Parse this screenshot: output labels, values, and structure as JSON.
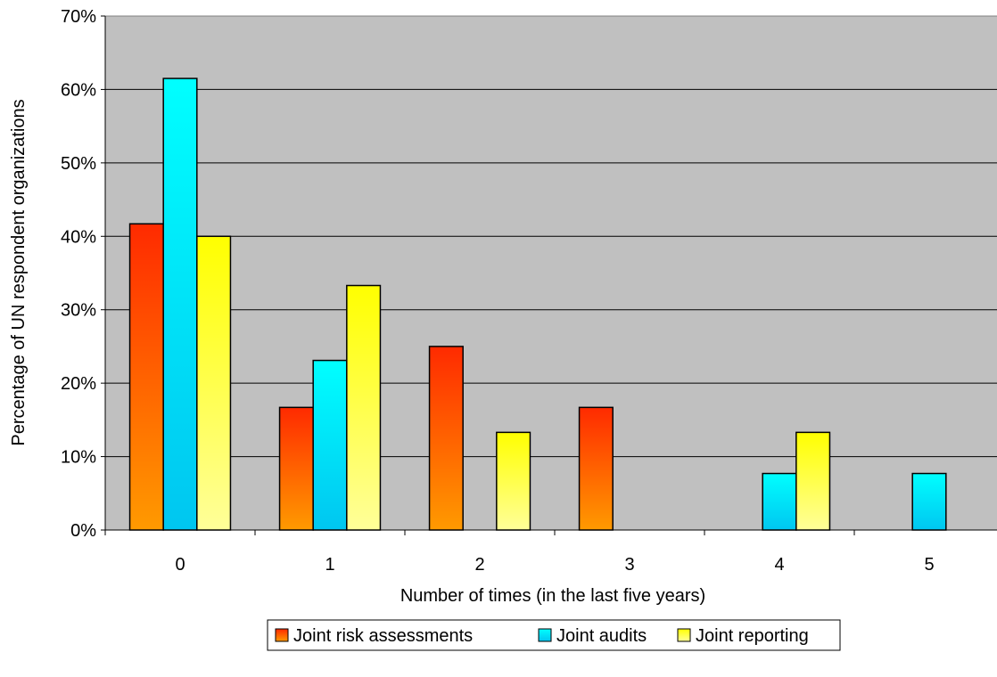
{
  "chart_data": {
    "type": "bar",
    "title": "",
    "xlabel": "Number of times (in the last five years)",
    "ylabel": "Percentage of UN respondent organizations",
    "categories": [
      "0",
      "1",
      "2",
      "3",
      "4",
      "5"
    ],
    "ylim": [
      0,
      70
    ],
    "yticks": [
      "0%",
      "10%",
      "20%",
      "30%",
      "40%",
      "50%",
      "60%",
      "70%"
    ],
    "grid": true,
    "legend_position": "bottom",
    "series": [
      {
        "name": "Joint risk assessments",
        "values": [
          41.7,
          16.7,
          25.0,
          16.7,
          0,
          0
        ],
        "color_top": "#ff2a00",
        "color_bottom": "#ff9a00"
      },
      {
        "name": "Joint audits",
        "values": [
          61.5,
          23.1,
          0,
          0,
          7.7,
          7.7
        ],
        "color_top": "#00ffff",
        "color_bottom": "#00c6f0"
      },
      {
        "name": "Joint reporting",
        "values": [
          40.0,
          33.3,
          13.3,
          0,
          13.3,
          0
        ],
        "color_top": "#ffff00",
        "color_bottom": "#ffff99"
      }
    ],
    "plot_background": "#c0c0c0"
  }
}
